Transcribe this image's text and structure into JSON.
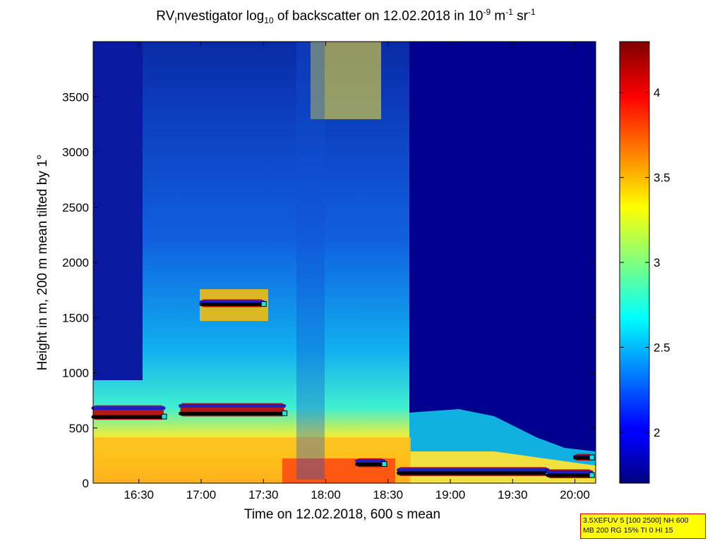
{
  "title": {
    "prefix": "RV",
    "prefix_sub": "I",
    "middle": "nvestigator log",
    "log_sub": "10",
    "after_log": " of backscatter on 12.02.2018 in 10",
    "exp_1": "-9",
    "unit_m": " m",
    "exp_2": "-1",
    "unit_sr": " sr",
    "exp_3": "-1"
  },
  "info_box": {
    "line1": "3.5XEFUV 5 [100 2500] NH 600",
    "line2": "MB 200 RG 15% TI 0 HI 15"
  },
  "colors": {
    "frame": "#000000",
    "background": "#ffffff",
    "cloud_base_line": "#000000",
    "cloud_top_line": "#2020c0",
    "marker": "#20e0e0"
  },
  "chart_data": {
    "type": "heatmap",
    "xlabel": "Time on 12.02.2018, 600 s mean",
    "ylabel": "Height in m, 200 m mean tilted by 1°",
    "xlim": [
      "16:08",
      "20:10"
    ],
    "ylim": [
      0,
      4000
    ],
    "x_ticks": [
      "16:30",
      "17:00",
      "17:30",
      "18:00",
      "18:30",
      "19:00",
      "19:30",
      "20:00"
    ],
    "y_ticks": [
      0,
      500,
      1000,
      1500,
      2000,
      2500,
      3000,
      3500
    ],
    "colorbar": {
      "colormap": "jet",
      "range": [
        1.7,
        4.3
      ],
      "ticks": [
        "2",
        "2.5",
        "3",
        "3.5",
        "4"
      ]
    },
    "cloud_layers": [
      {
        "start": "16:08",
        "end": "16:42",
        "base_height": 600,
        "top_height": 680
      },
      {
        "start": "16:50",
        "end": "17:40",
        "base_height": 630,
        "top_height": 700
      },
      {
        "start": "17:00",
        "end": "17:30",
        "base_height": 1620,
        "top_height": 1640
      },
      {
        "start": "18:15",
        "end": "18:28",
        "base_height": 170,
        "top_height": 200
      },
      {
        "start": "18:35",
        "end": "19:47",
        "base_height": 90,
        "top_height": 120
      },
      {
        "start": "19:47",
        "end": "20:08",
        "base_height": 70,
        "top_height": 100
      },
      {
        "start": "20:00",
        "end": "20:08",
        "base_height": 230,
        "top_height": 240
      }
    ]
  }
}
